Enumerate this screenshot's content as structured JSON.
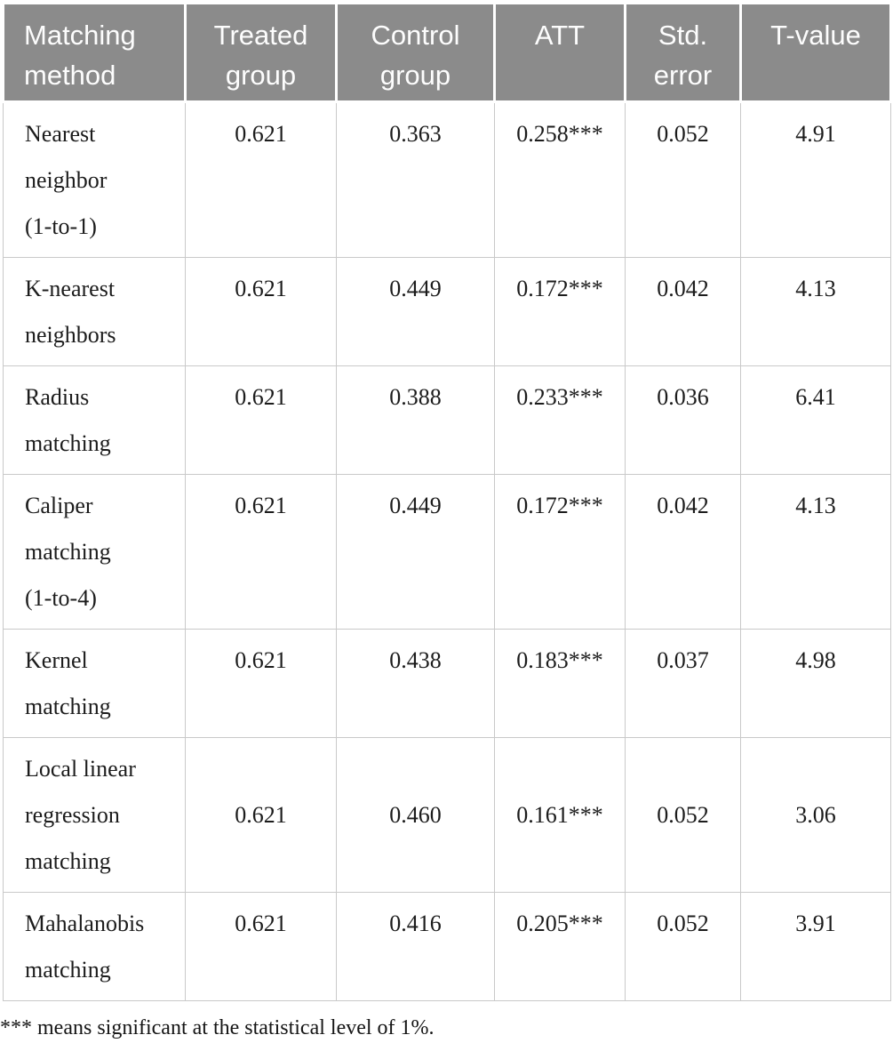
{
  "table": {
    "columns": [
      "Matching\nmethod",
      "Treated\ngroup",
      "Control\ngroup",
      "ATT",
      "Std.\nerror",
      "T-value"
    ],
    "rows": [
      {
        "method": "Nearest\nneighbor\n(1-to-1)",
        "treated": "0.621",
        "control": "0.363",
        "att": "0.258***",
        "std_error": "0.052",
        "t_value": "4.91"
      },
      {
        "method": "K-nearest\nneighbors",
        "treated": "0.621",
        "control": "0.449",
        "att": "0.172***",
        "std_error": "0.042",
        "t_value": "4.13"
      },
      {
        "method": "Radius\nmatching",
        "treated": "0.621",
        "control": "0.388",
        "att": "0.233***",
        "std_error": "0.036",
        "t_value": "6.41"
      },
      {
        "method": "Caliper\nmatching\n(1-to-4)",
        "treated": "0.621",
        "control": "0.449",
        "att": "0.172***",
        "std_error": "0.042",
        "t_value": "4.13"
      },
      {
        "method": "Kernel\nmatching",
        "treated": "0.621",
        "control": "0.438",
        "att": "0.183***",
        "std_error": "0.037",
        "t_value": "4.98"
      },
      {
        "method": "Local linear\nregression\nmatching",
        "treated": "0.621",
        "control": "0.460",
        "att": "0.161***",
        "std_error": "0.052",
        "t_value": "3.06"
      },
      {
        "method": "Mahalanobis\nmatching",
        "treated": "0.621",
        "control": "0.416",
        "att": "0.205***",
        "std_error": "0.052",
        "t_value": "3.91"
      }
    ]
  },
  "footnote": "*** means significant at the statistical level of 1%.",
  "colors": {
    "header_bg": "#8b8b8b",
    "header_text": "#fdfdfd",
    "body_text": "#1c1c1c",
    "cell_border": "#c9c9c9"
  }
}
